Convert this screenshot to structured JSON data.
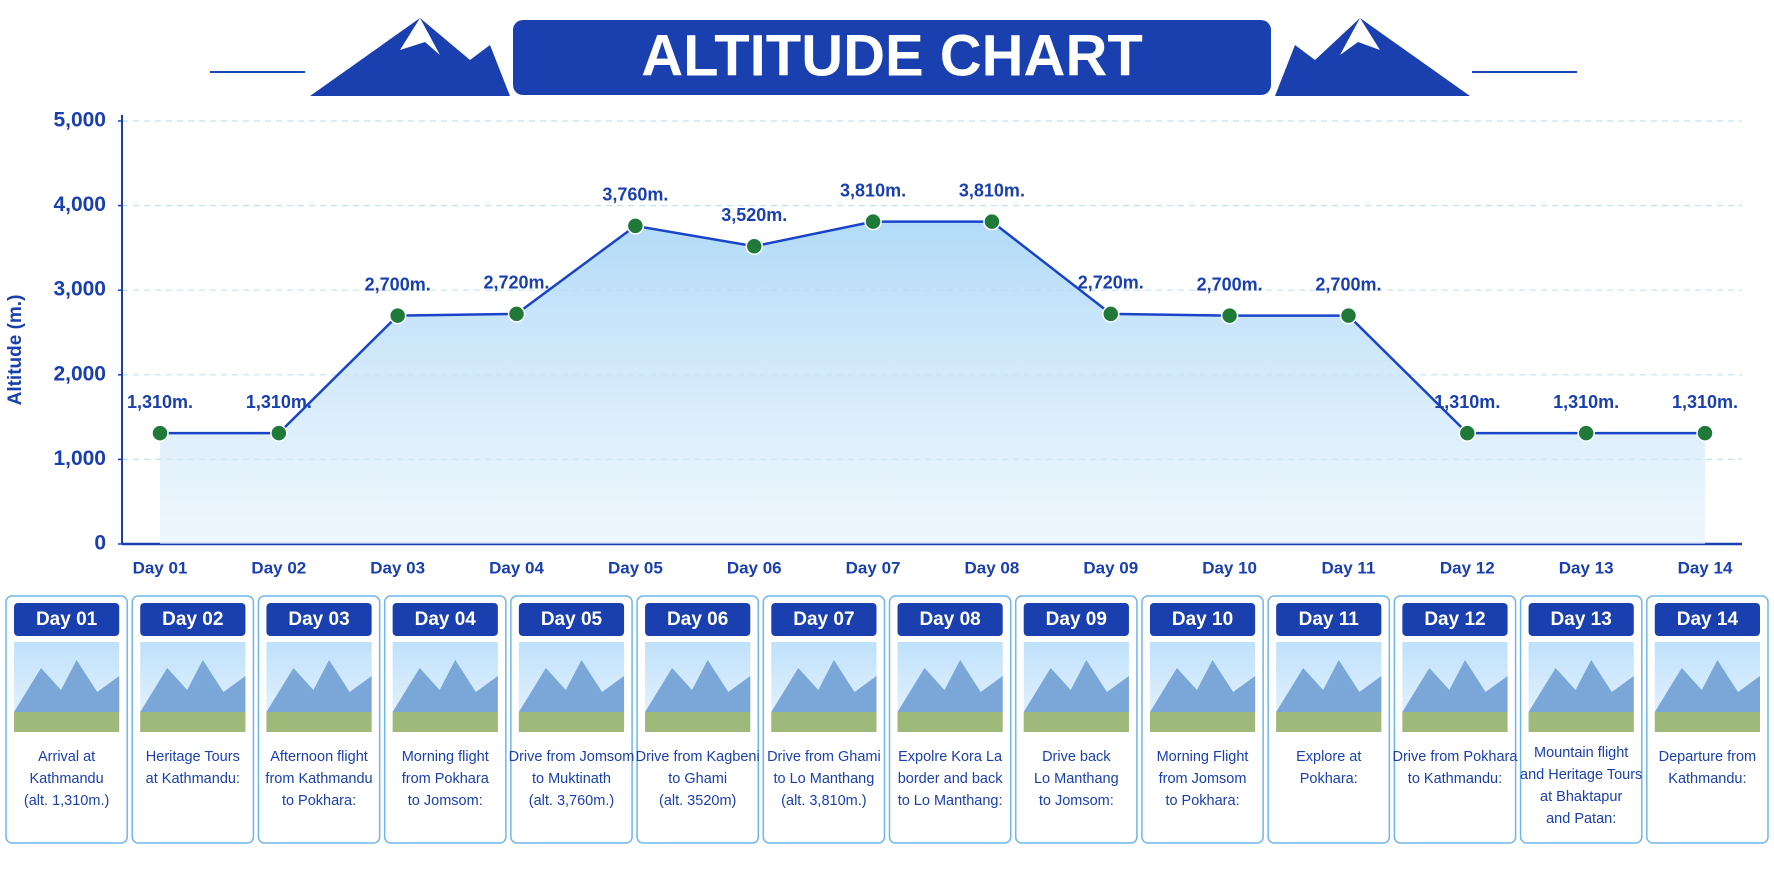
{
  "chart_data": {
    "type": "line",
    "title": "ALTITUDE CHART",
    "y_label": "Altitude (m.)",
    "categories": [
      "Day 01",
      "Day 02",
      "Day 03",
      "Day 04",
      "Day 05",
      "Day 06",
      "Day 07",
      "Day 08",
      "Day 09",
      "Day 10",
      "Day 11",
      "Day 12",
      "Day 13",
      "Day 14"
    ],
    "values": [
      1310,
      1310,
      2700,
      2720,
      3760,
      3520,
      3810,
      3810,
      2720,
      2700,
      2700,
      1310,
      1310,
      1310
    ],
    "value_labels": [
      "1,310m.",
      "1,310m.",
      "2,700m.",
      "2,720m.",
      "3,760m.",
      "3,520m.",
      "3,810m.",
      "3,810m.",
      "2,720m.",
      "2,700m.",
      "2,700m.",
      "1,310m.",
      "1,310m.",
      "1,310m."
    ],
    "color": "#1a44c8",
    "marker_color": "#1f7a3a",
    "ylim": [
      0,
      5000
    ],
    "yticks": [
      0,
      {
        "value": 1000,
        "label": "1,000"
      },
      {
        "value": 2000,
        "label": "2,000"
      },
      {
        "value": 3000,
        "label": "3,000"
      },
      {
        "value": 4000,
        "label": "4,000"
      },
      {
        "value": 5000,
        "label": "5,000"
      }
    ],
    "grid": true
  },
  "cards": [
    {
      "day": "Day 01",
      "lines": [
        "Arrival at",
        "Kathmandu",
        "(alt. 1,310m.)"
      ]
    },
    {
      "day": "Day 02",
      "lines": [
        "Heritage Tours",
        "at Kathmandu:"
      ]
    },
    {
      "day": "Day 03",
      "lines": [
        "Afternoon flight",
        "from Kathmandu",
        "to Pokhara:"
      ]
    },
    {
      "day": "Day 04",
      "lines": [
        "Morning flight",
        "from Pokhara",
        "to Jomsom:"
      ]
    },
    {
      "day": "Day 05",
      "lines": [
        "Drive from Jomsom",
        "to Muktinath",
        "(alt. 3,760m.)"
      ]
    },
    {
      "day": "Day 06",
      "lines": [
        "Drive from Kagbeni",
        "to Ghami",
        "(alt. 3520m)"
      ]
    },
    {
      "day": "Day 07",
      "lines": [
        "Drive from Ghami",
        "to Lo Manthang",
        "(alt. 3,810m.)"
      ]
    },
    {
      "day": "Day 08",
      "lines": [
        "Expolre Kora La",
        "border and back",
        "to Lo Manthang:"
      ]
    },
    {
      "day": "Day 09",
      "lines": [
        "Drive back",
        "Lo Manthang",
        "to Jomsom:"
      ]
    },
    {
      "day": "Day 10",
      "lines": [
        "Morning Flight",
        "from Jomsom",
        "to Pokhara:"
      ]
    },
    {
      "day": "Day 11",
      "lines": [
        "Explore at",
        "Pokhara:"
      ]
    },
    {
      "day": "Day 12",
      "lines": [
        "Drive from Pokhara",
        "to Kathmandu:"
      ]
    },
    {
      "day": "Day 13",
      "lines": [
        "Mountain flight",
        "and Heritage Tours",
        "at Bhaktapur",
        "and Patan:"
      ]
    },
    {
      "day": "Day 14",
      "lines": [
        "Departure from",
        "Kathmandu:"
      ]
    }
  ]
}
